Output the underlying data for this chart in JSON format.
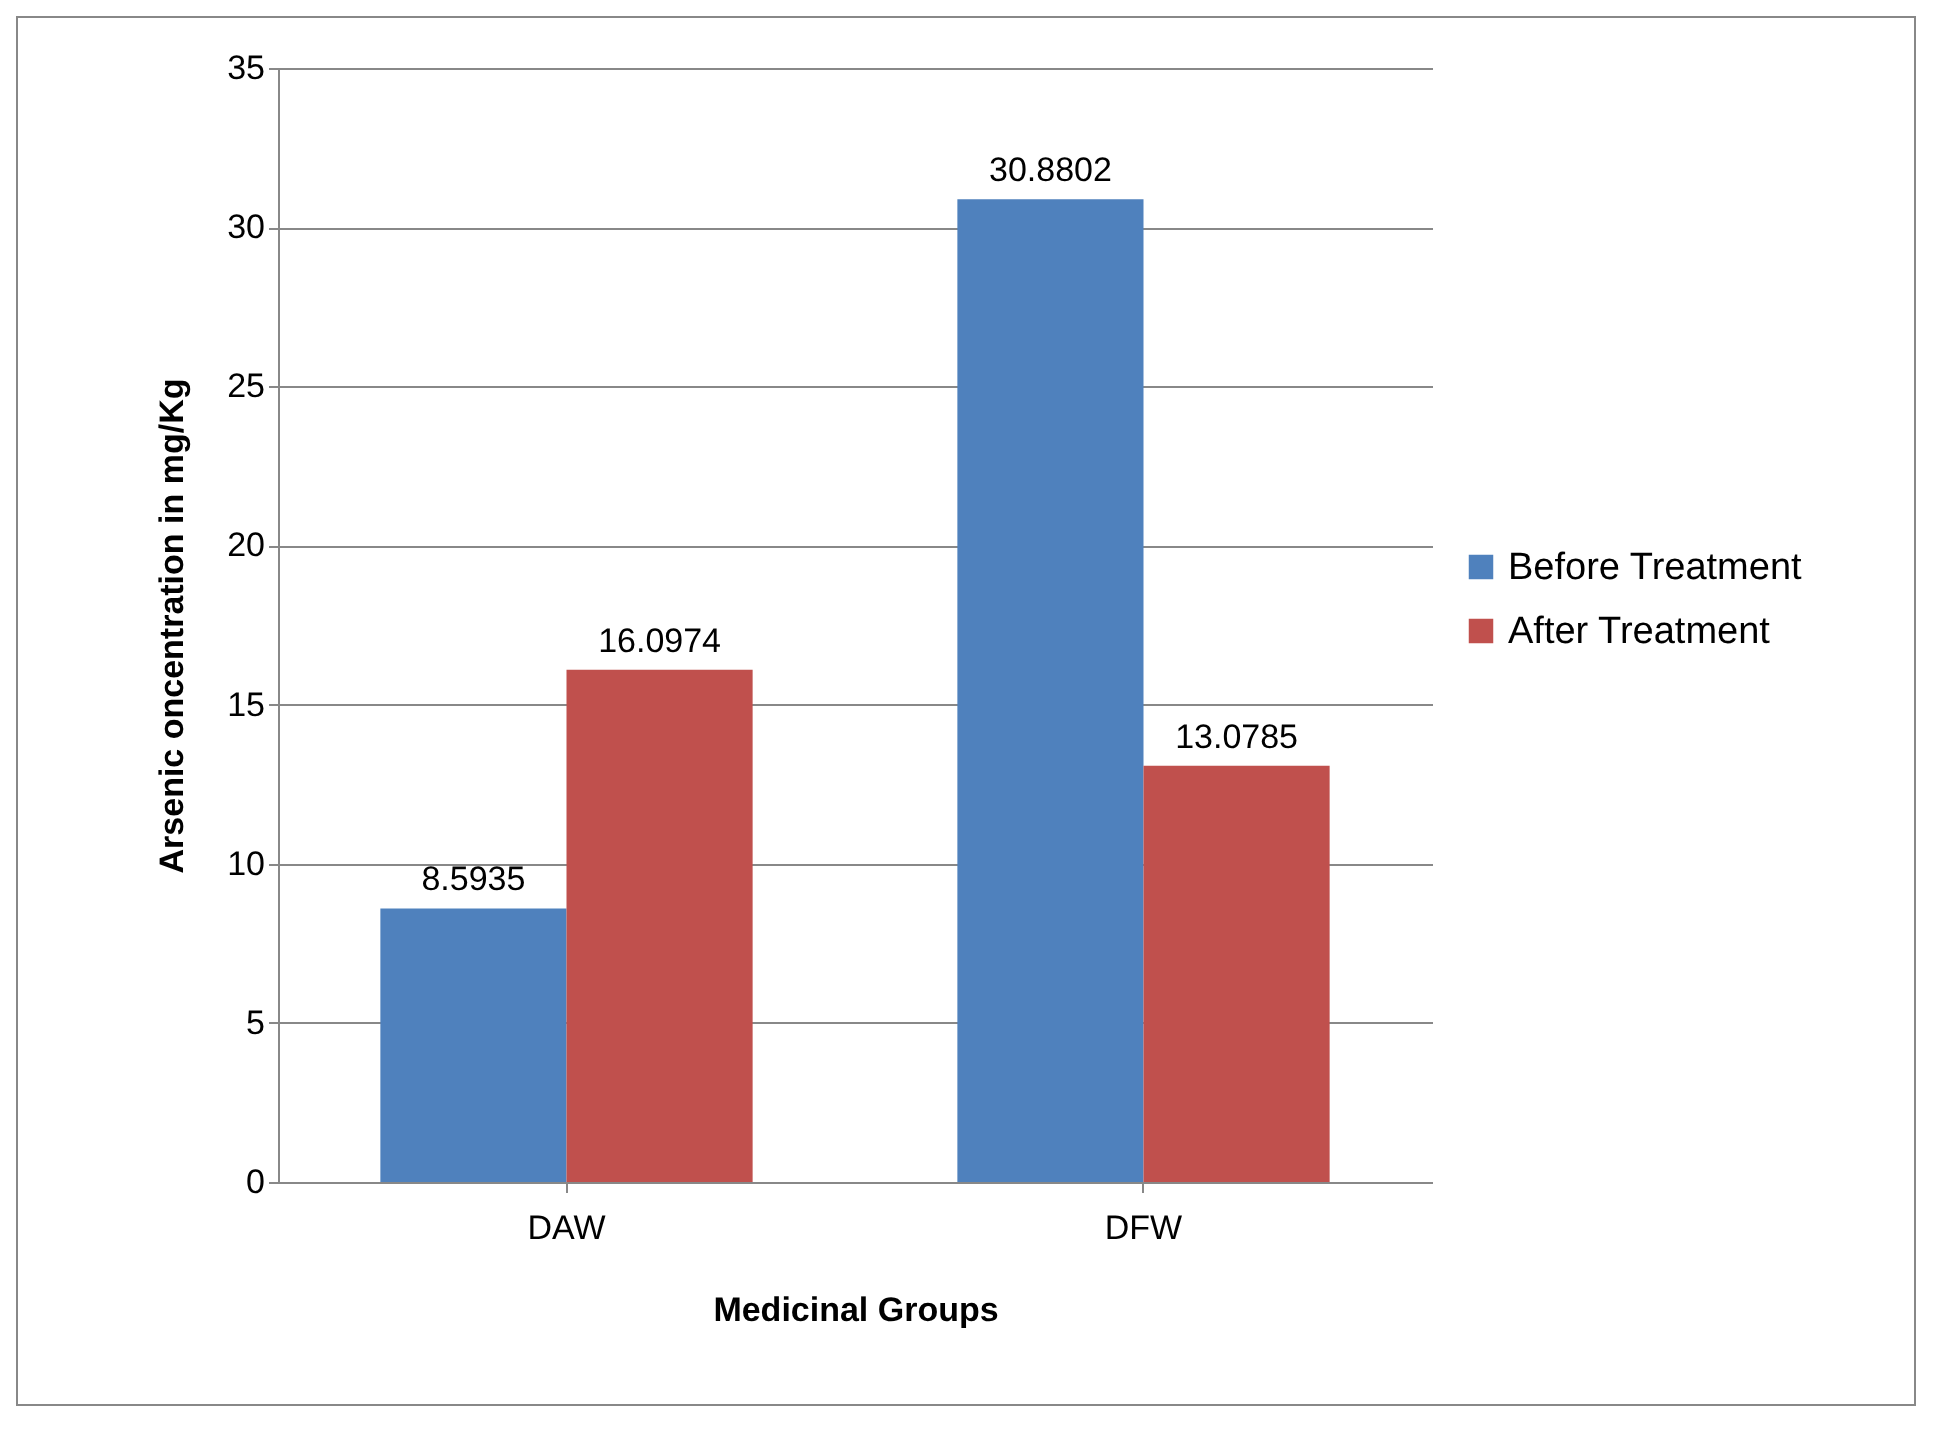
{
  "chart_data": {
    "type": "bar",
    "xlabel": "Medicinal Groups",
    "ylabel": "Arsenic oncentration in mg/Kg",
    "categories": [
      "DAW",
      "DFW"
    ],
    "series": [
      {
        "name": "Before Treatment",
        "color": "#4f81bd",
        "values": [
          8.5935,
          30.8802
        ]
      },
      {
        "name": "After Treatment",
        "color": "#c0504d",
        "values": [
          16.0974,
          13.0785
        ]
      }
    ],
    "ylim": [
      0,
      35
    ],
    "yticks": [
      0,
      5,
      10,
      15,
      20,
      25,
      30,
      35
    ],
    "grid": "y",
    "legend": "right",
    "data_labels": true
  }
}
